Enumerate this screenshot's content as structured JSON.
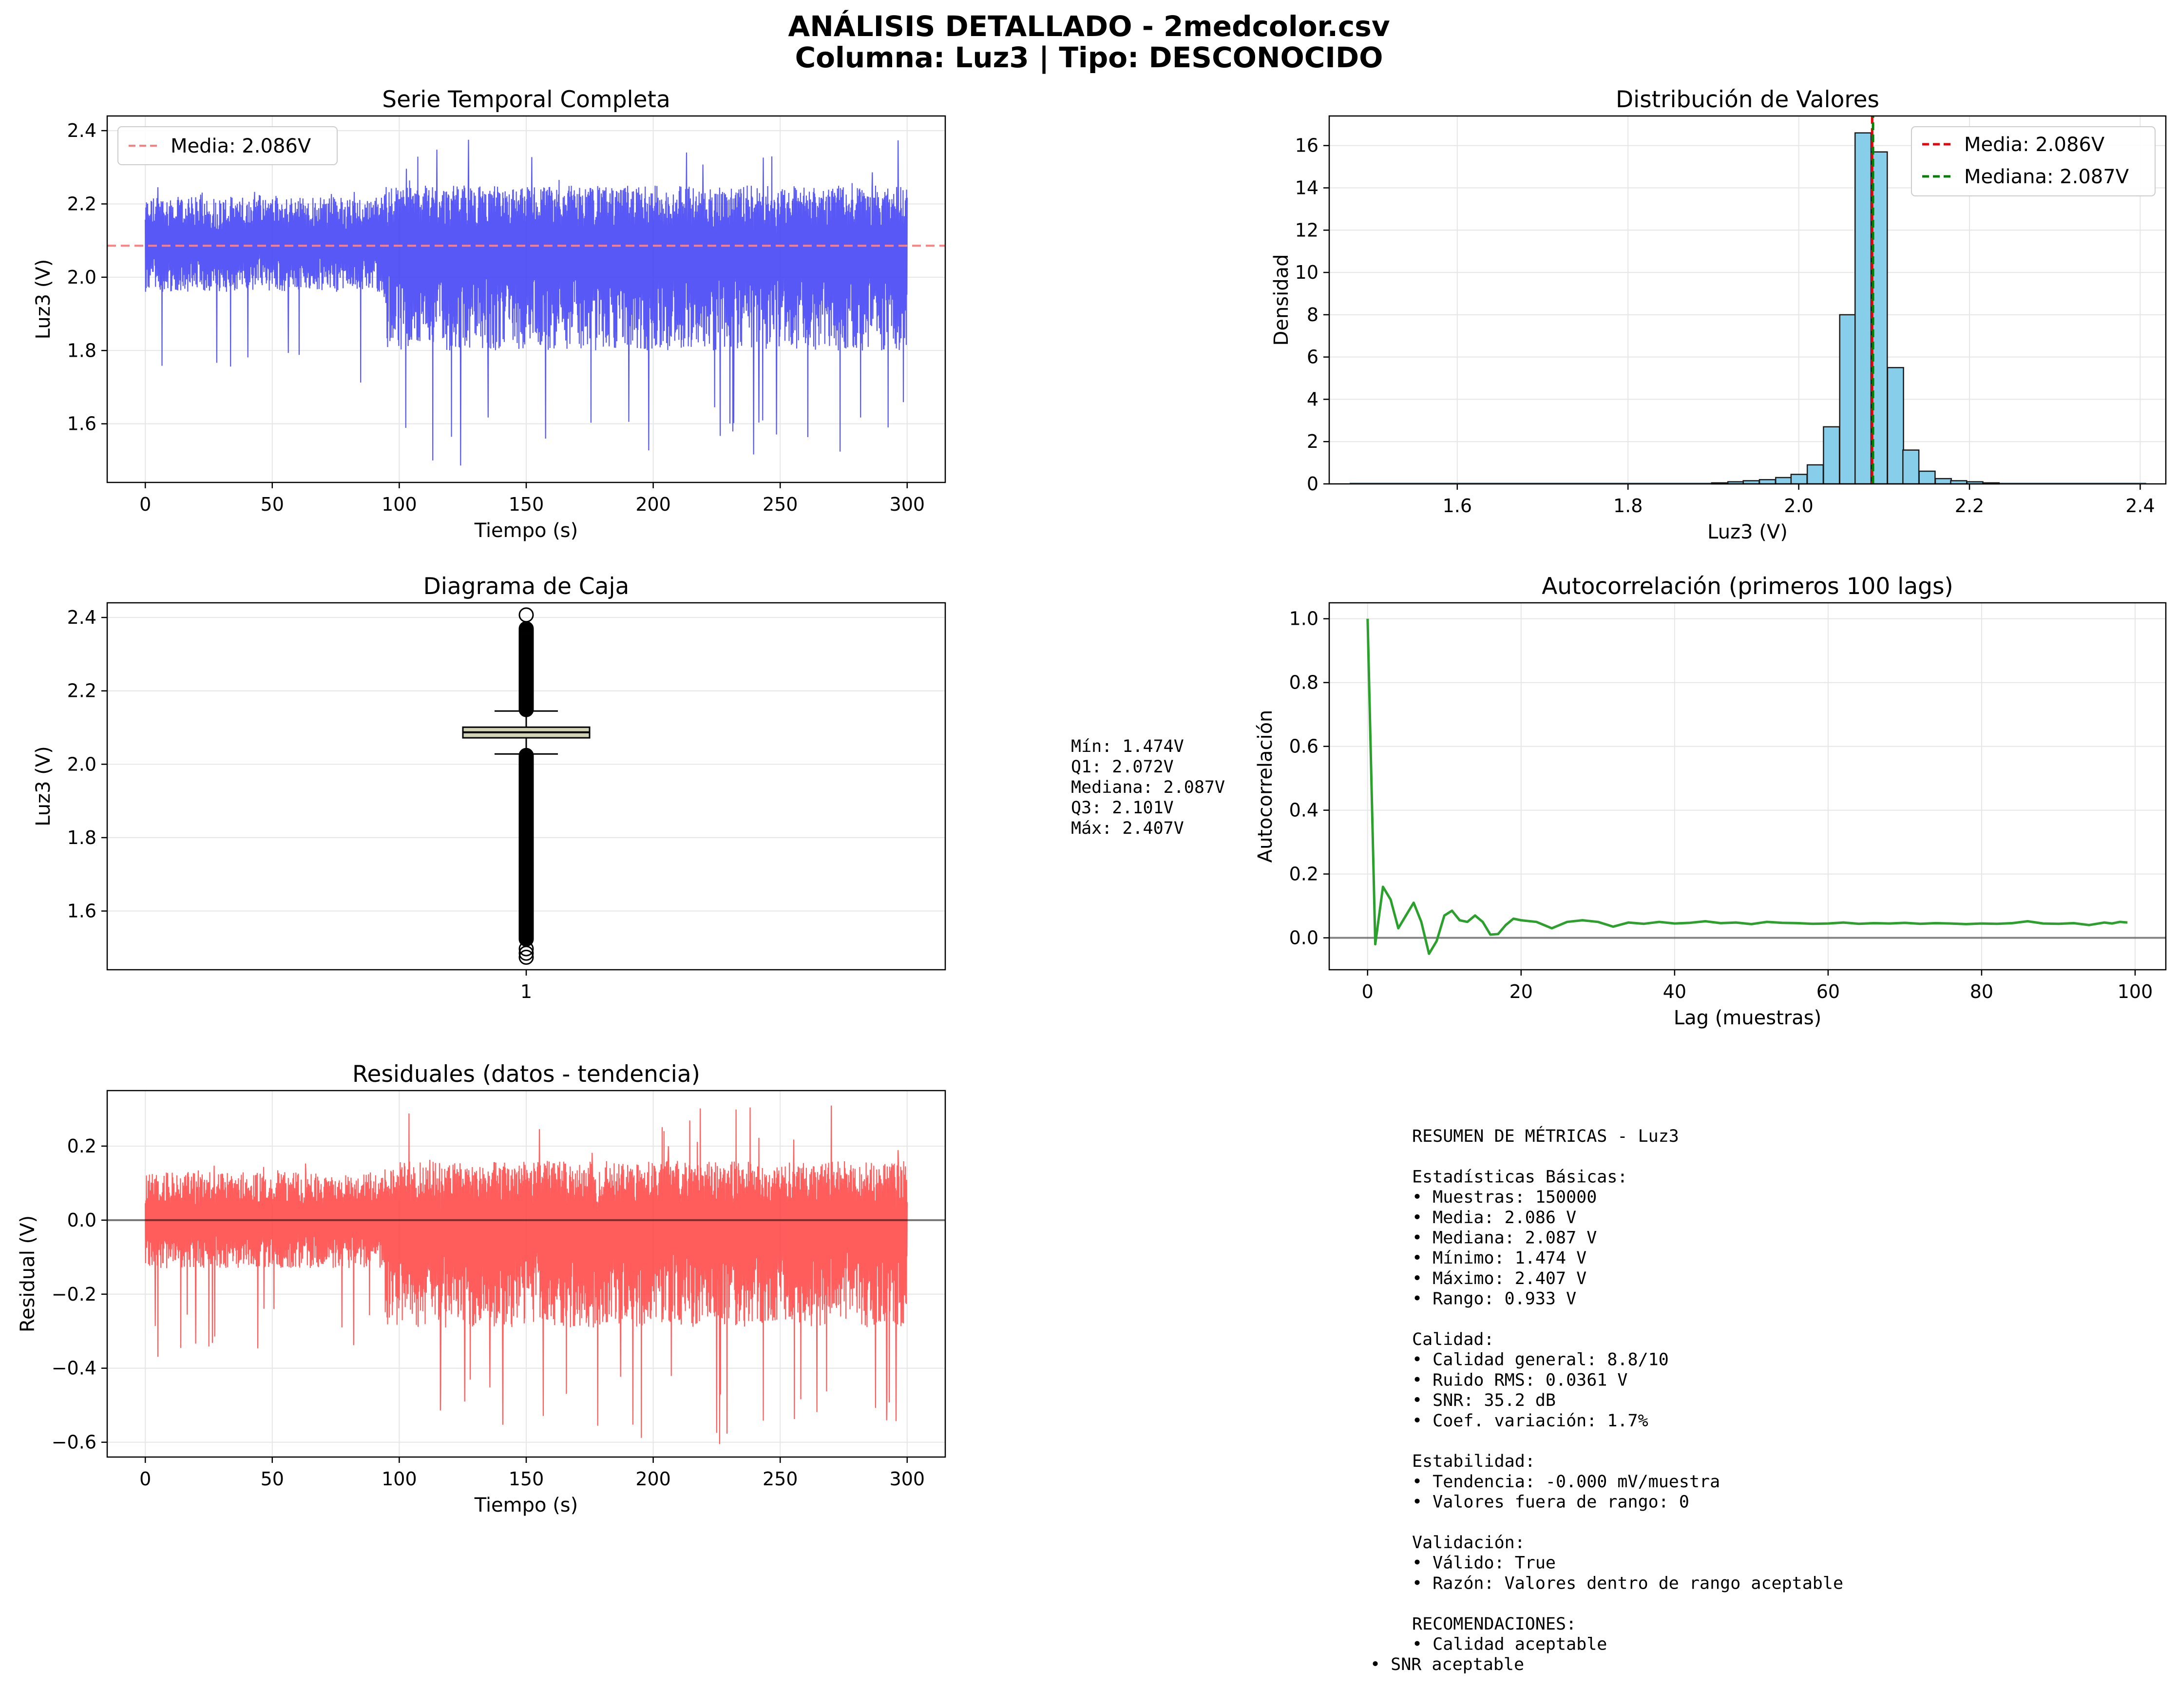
{
  "figure": {
    "title_line1": "ANÁLISIS DETALLADO - 2medcolor.csv",
    "title_line2": "Columna: Luz3 | Tipo: DESCONOCIDO"
  },
  "chart_data": [
    {
      "id": "serie",
      "type": "line",
      "title": "Serie Temporal Completa",
      "xlabel": "Tiempo (s)",
      "ylabel": "Luz3 (V)",
      "xlim": [
        -15,
        315
      ],
      "ylim": [
        1.44,
        2.44
      ],
      "xticks": [
        0,
        50,
        100,
        150,
        200,
        250,
        300
      ],
      "yticks": [
        1.6,
        1.8,
        2.0,
        2.2,
        2.4
      ],
      "ytick_labels": [
        "1.6",
        "1.8",
        "2.0",
        "2.2",
        "2.4"
      ],
      "grid": true,
      "legend_position": "top-left",
      "mean_line": {
        "value": 2.086,
        "label": "Media: 2.086V",
        "color": "#ff7f7f"
      },
      "series": [
        {
          "color": "#3b3bf5",
          "x_range": [
            0,
            300
          ],
          "segments": [
            {
              "x": [
                0,
                94
              ],
              "center": 2.09,
              "typical_range": [
                1.96,
                2.22
              ],
              "extremes": {
                "min": 1.71,
                "max": 2.26
              }
            },
            {
              "x": [
                94,
                300
              ],
              "center": 2.09,
              "typical_range": [
                1.8,
                2.25
              ],
              "extremes": {
                "min": 1.474,
                "max": 2.407
              }
            }
          ]
        }
      ]
    },
    {
      "id": "hist",
      "type": "bar",
      "title": "Distribución de Valores",
      "xlabel": "Luz3 (V)",
      "ylabel": "Densidad",
      "xlim": [
        1.45,
        2.43
      ],
      "ylim": [
        0,
        17.4
      ],
      "xticks": [
        1.6,
        1.8,
        2.0,
        2.2,
        2.4
      ],
      "xtick_labels": [
        "1.6",
        "1.8",
        "2.0",
        "2.2",
        "2.4"
      ],
      "yticks": [
        0,
        2,
        4,
        6,
        8,
        10,
        12,
        14,
        16
      ],
      "grid": true,
      "legend_position": "top-right",
      "bin_width": 0.0187,
      "bins": [
        {
          "x0": 1.898,
          "value": 0.05
        },
        {
          "x0": 1.917,
          "value": 0.1
        },
        {
          "x0": 1.935,
          "value": 0.15
        },
        {
          "x0": 1.954,
          "value": 0.2
        },
        {
          "x0": 1.973,
          "value": 0.3
        },
        {
          "x0": 1.991,
          "value": 0.45
        },
        {
          "x0": 2.01,
          "value": 0.9
        },
        {
          "x0": 2.029,
          "value": 2.7
        },
        {
          "x0": 2.048,
          "value": 8.0
        },
        {
          "x0": 2.066,
          "value": 16.6
        },
        {
          "x0": 2.085,
          "value": 15.7
        },
        {
          "x0": 2.104,
          "value": 5.5
        },
        {
          "x0": 2.122,
          "value": 1.6
        },
        {
          "x0": 2.141,
          "value": 0.6
        },
        {
          "x0": 2.16,
          "value": 0.25
        },
        {
          "x0": 2.178,
          "value": 0.15
        },
        {
          "x0": 2.197,
          "value": 0.1
        },
        {
          "x0": 2.216,
          "value": 0.05
        }
      ],
      "faint_tail_range": [
        1.474,
        2.407
      ],
      "bar_color": "#87ceeb",
      "lines": [
        {
          "value": 2.086,
          "label": "Media: 2.086V",
          "color": "#e8000b"
        },
        {
          "value": 2.087,
          "label": "Mediana: 2.087V",
          "color": "#008000"
        }
      ]
    },
    {
      "id": "box",
      "type": "box",
      "title": "Diagrama de Caja",
      "ylabel": "Luz3 (V)",
      "xticks": [
        "1"
      ],
      "ylim": [
        1.44,
        2.44
      ],
      "yticks": [
        1.6,
        1.8,
        2.0,
        2.2,
        2.4
      ],
      "ytick_labels": [
        "1.6",
        "1.8",
        "2.0",
        "2.2",
        "2.4"
      ],
      "grid": true,
      "stats": {
        "min": 1.474,
        "q1": 2.072,
        "median": 2.087,
        "q3": 2.101,
        "max": 2.407,
        "whisker_low": 2.028,
        "whisker_high": 2.145
      },
      "box_color": "#d2d2b4",
      "annotation": [
        "Mín: 1.474V",
        "Q1: 2.072V",
        "Mediana: 2.087V",
        "Q3: 2.101V",
        "Máx: 2.407V"
      ]
    },
    {
      "id": "acf",
      "type": "line",
      "title": "Autocorrelación (primeros 100 lags)",
      "xlabel": "Lag (muestras)",
      "ylabel": "Autocorrelación",
      "xlim": [
        -5,
        104
      ],
      "ylim": [
        -0.1,
        1.05
      ],
      "xticks": [
        0,
        20,
        40,
        60,
        80,
        100
      ],
      "yticks": [
        0.0,
        0.2,
        0.4,
        0.6,
        0.8,
        1.0
      ],
      "ytick_labels": [
        "0.0",
        "0.2",
        "0.4",
        "0.6",
        "0.8",
        "1.0"
      ],
      "grid": true,
      "color": "#2ca02c",
      "zero_line": true,
      "x": [
        0,
        1,
        2,
        3,
        4,
        5,
        6,
        7,
        8,
        9,
        10,
        11,
        12,
        13,
        14,
        15,
        16,
        17,
        18,
        19,
        20,
        22,
        24,
        26,
        28,
        30,
        32,
        34,
        36,
        38,
        40,
        42,
        44,
        46,
        48,
        50,
        52,
        54,
        56,
        58,
        60,
        62,
        64,
        66,
        68,
        70,
        72,
        74,
        76,
        78,
        80,
        82,
        84,
        86,
        88,
        90,
        92,
        94,
        96,
        97,
        98,
        99
      ],
      "values": [
        1.0,
        -0.02,
        0.16,
        0.12,
        0.03,
        0.07,
        0.11,
        0.05,
        -0.05,
        -0.01,
        0.07,
        0.085,
        0.055,
        0.05,
        0.07,
        0.05,
        0.01,
        0.012,
        0.04,
        0.06,
        0.055,
        0.05,
        0.03,
        0.05,
        0.055,
        0.05,
        0.035,
        0.048,
        0.044,
        0.05,
        0.045,
        0.047,
        0.052,
        0.046,
        0.048,
        0.043,
        0.05,
        0.047,
        0.046,
        0.044,
        0.045,
        0.048,
        0.044,
        0.046,
        0.045,
        0.047,
        0.044,
        0.046,
        0.045,
        0.043,
        0.045,
        0.044,
        0.046,
        0.052,
        0.045,
        0.044,
        0.046,
        0.04,
        0.048,
        0.045,
        0.05,
        0.048
      ]
    },
    {
      "id": "resid",
      "type": "line",
      "title": "Residuales (datos - tendencia)",
      "xlabel": "Tiempo (s)",
      "ylabel": "Residual (V)",
      "xlim": [
        -15,
        315
      ],
      "ylim": [
        -0.64,
        0.35
      ],
      "xticks": [
        0,
        50,
        100,
        150,
        200,
        250,
        300
      ],
      "yticks": [
        -0.6,
        -0.4,
        -0.2,
        0.0,
        0.2
      ],
      "ytick_labels": [
        "−0.6",
        "−0.4",
        "−0.2",
        "0.0",
        "0.2"
      ],
      "grid": true,
      "zero_line": true,
      "series": [
        {
          "color": "#ff4040",
          "x_range": [
            0,
            300
          ],
          "segments": [
            {
              "x": [
                0,
                94
              ],
              "center": 0.0,
              "typical_range": [
                -0.13,
                0.13
              ],
              "extremes": {
                "min": -0.38,
                "max": 0.17
              }
            },
            {
              "x": [
                94,
                300
              ],
              "center": 0.0,
              "typical_range": [
                -0.29,
                0.16
              ],
              "extremes": {
                "min": -0.61,
                "max": 0.32
              }
            }
          ]
        }
      ]
    }
  ],
  "summary": {
    "lines": [
      "RESUMEN DE MÉTRICAS - Luz3",
      "",
      "Estadísticas Básicas:",
      "• Muestras: 150000",
      "• Media: 2.086 V",
      "• Mediana: 2.087 V",
      "• Mínimo: 1.474 V",
      "• Máximo: 2.407 V",
      "• Rango: 0.933 V",
      "",
      "Calidad:",
      "• Calidad general: 8.8/10",
      "• Ruido RMS: 0.0361 V",
      "• SNR: 35.2 dB",
      "• Coef. variación: 1.7%",
      "",
      "Estabilidad:",
      "• Tendencia: -0.000 mV/muestra",
      "• Valores fuera de rango: 0",
      "",
      "Validación:",
      "• Válido: True",
      "• Razón: Valores dentro de rango aceptable",
      "",
      "RECOMENDACIONES:",
      "• Calidad aceptable"
    ],
    "last_line": "• SNR aceptable"
  }
}
